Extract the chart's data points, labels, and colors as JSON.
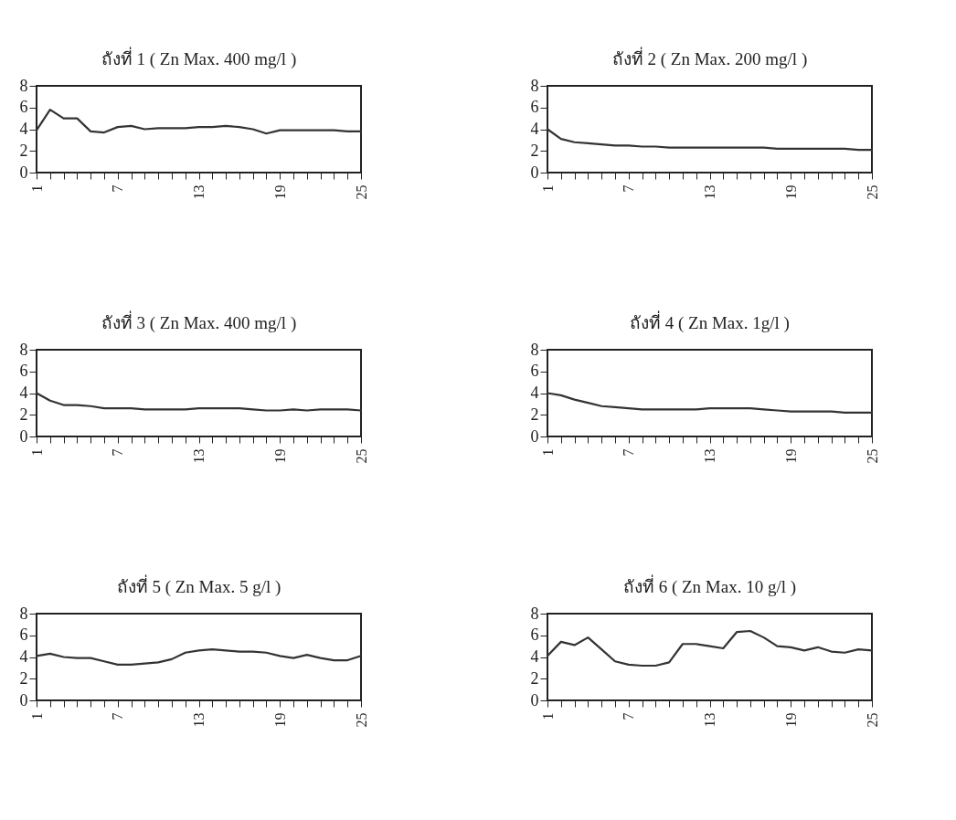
{
  "chart_data": [
    {
      "type": "line",
      "title": "ถังที่  1 ( Zn Max. 400 mg/l )",
      "x": [
        1,
        2,
        3,
        4,
        5,
        6,
        7,
        8,
        9,
        10,
        11,
        12,
        13,
        14,
        15,
        16,
        17,
        18,
        19,
        20,
        21,
        22,
        23,
        24,
        25
      ],
      "series": [
        {
          "color": "#333333",
          "values": [
            3.9,
            5.8,
            5.0,
            5.0,
            3.8,
            3.7,
            4.2,
            4.3,
            4.0,
            4.1,
            4.1,
            4.1,
            4.2,
            4.2,
            4.3,
            4.2,
            4.0,
            3.6,
            3.9,
            3.9,
            3.9,
            3.9,
            3.9,
            3.8,
            3.8
          ]
        }
      ],
      "xlim": [
        1,
        25
      ],
      "ylim": [
        0,
        8
      ],
      "yticks": [
        0,
        2,
        4,
        6,
        8
      ],
      "xticks": [
        1,
        {
          "value": 2,
          "label": null
        },
        {
          "value": 3,
          "label": null
        },
        {
          "value": 4,
          "label": null
        },
        {
          "value": 5,
          "label": null
        },
        {
          "value": 6,
          "label": null
        },
        7,
        {
          "value": 8,
          "label": null
        },
        {
          "value": 9,
          "label": null
        },
        {
          "value": 10,
          "label": null
        },
        {
          "value": 11,
          "label": null
        },
        {
          "value": 12,
          "label": null
        },
        13,
        {
          "value": 14,
          "label": null
        },
        {
          "value": 15,
          "label": null
        },
        {
          "value": 16,
          "label": null
        },
        {
          "value": 17,
          "label": null
        },
        {
          "value": 18,
          "label": null
        },
        19,
        {
          "value": 20,
          "label": null
        },
        {
          "value": 21,
          "label": null
        },
        {
          "value": 22,
          "label": null
        },
        {
          "value": 23,
          "label": null
        },
        {
          "value": 24,
          "label": null
        },
        25
      ],
      "grid": false,
      "marker": "none",
      "line_style": "solid"
    },
    {
      "type": "line",
      "title": "ถังที่  2 ( Zn Max. 200 mg/l )",
      "x": [
        1,
        2,
        3,
        4,
        5,
        6,
        7,
        8,
        9,
        10,
        11,
        12,
        13,
        14,
        15,
        16,
        17,
        18,
        19,
        20,
        21,
        22,
        23,
        24,
        25
      ],
      "series": [
        {
          "color": "#333333",
          "values": [
            4.0,
            3.1,
            2.8,
            2.7,
            2.6,
            2.5,
            2.5,
            2.4,
            2.4,
            2.3,
            2.3,
            2.3,
            2.3,
            2.3,
            2.3,
            2.3,
            2.3,
            2.2,
            2.2,
            2.2,
            2.2,
            2.2,
            2.2,
            2.1,
            2.1
          ]
        }
      ],
      "xlim": [
        1,
        25
      ],
      "ylim": [
        0,
        8
      ],
      "yticks": [
        0,
        2,
        4,
        6,
        8
      ],
      "xticks": [
        1,
        {
          "value": 2,
          "label": null
        },
        {
          "value": 3,
          "label": null
        },
        {
          "value": 4,
          "label": null
        },
        {
          "value": 5,
          "label": null
        },
        {
          "value": 6,
          "label": null
        },
        7,
        {
          "value": 8,
          "label": null
        },
        {
          "value": 9,
          "label": null
        },
        {
          "value": 10,
          "label": null
        },
        {
          "value": 11,
          "label": null
        },
        {
          "value": 12,
          "label": null
        },
        13,
        {
          "value": 14,
          "label": null
        },
        {
          "value": 15,
          "label": null
        },
        {
          "value": 16,
          "label": null
        },
        {
          "value": 17,
          "label": null
        },
        {
          "value": 18,
          "label": null
        },
        19,
        {
          "value": 20,
          "label": null
        },
        {
          "value": 21,
          "label": null
        },
        {
          "value": 22,
          "label": null
        },
        {
          "value": 23,
          "label": null
        },
        {
          "value": 24,
          "label": null
        },
        25
      ],
      "grid": false,
      "marker": "none",
      "line_style": "solid"
    },
    {
      "type": "line",
      "title": "ถังที่  3 ( Zn Max. 400 mg/l )",
      "x": [
        1,
        2,
        3,
        4,
        5,
        6,
        7,
        8,
        9,
        10,
        11,
        12,
        13,
        14,
        15,
        16,
        17,
        18,
        19,
        20,
        21,
        22,
        23,
        24,
        25
      ],
      "series": [
        {
          "color": "#333333",
          "values": [
            4.0,
            3.3,
            2.9,
            2.9,
            2.8,
            2.6,
            2.6,
            2.6,
            2.5,
            2.5,
            2.5,
            2.5,
            2.6,
            2.6,
            2.6,
            2.6,
            2.5,
            2.4,
            2.4,
            2.5,
            2.4,
            2.5,
            2.5,
            2.5,
            2.4
          ]
        }
      ],
      "xlim": [
        1,
        25
      ],
      "ylim": [
        0,
        8
      ],
      "yticks": [
        0,
        2,
        4,
        6,
        8
      ],
      "xticks": [
        1,
        {
          "value": 2,
          "label": null
        },
        {
          "value": 3,
          "label": null
        },
        {
          "value": 4,
          "label": null
        },
        {
          "value": 5,
          "label": null
        },
        {
          "value": 6,
          "label": null
        },
        7,
        {
          "value": 8,
          "label": null
        },
        {
          "value": 9,
          "label": null
        },
        {
          "value": 10,
          "label": null
        },
        {
          "value": 11,
          "label": null
        },
        {
          "value": 12,
          "label": null
        },
        13,
        {
          "value": 14,
          "label": null
        },
        {
          "value": 15,
          "label": null
        },
        {
          "value": 16,
          "label": null
        },
        {
          "value": 17,
          "label": null
        },
        {
          "value": 18,
          "label": null
        },
        19,
        {
          "value": 20,
          "label": null
        },
        {
          "value": 21,
          "label": null
        },
        {
          "value": 22,
          "label": null
        },
        {
          "value": 23,
          "label": null
        },
        {
          "value": 24,
          "label": null
        },
        25
      ],
      "grid": false,
      "marker": "none",
      "line_style": "solid"
    },
    {
      "type": "line",
      "title": "ถังที่  4 ( Zn Max. 1g/l )",
      "x": [
        1,
        2,
        3,
        4,
        5,
        6,
        7,
        8,
        9,
        10,
        11,
        12,
        13,
        14,
        15,
        16,
        17,
        18,
        19,
        20,
        21,
        22,
        23,
        24,
        25
      ],
      "series": [
        {
          "color": "#333333",
          "values": [
            4.0,
            3.8,
            3.4,
            3.1,
            2.8,
            2.7,
            2.6,
            2.5,
            2.5,
            2.5,
            2.5,
            2.5,
            2.6,
            2.6,
            2.6,
            2.6,
            2.5,
            2.4,
            2.3,
            2.3,
            2.3,
            2.3,
            2.2,
            2.2,
            2.2
          ]
        }
      ],
      "xlim": [
        1,
        25
      ],
      "ylim": [
        0,
        8
      ],
      "yticks": [
        0,
        2,
        4,
        6,
        8
      ],
      "xticks": [
        1,
        {
          "value": 2,
          "label": null
        },
        {
          "value": 3,
          "label": null
        },
        {
          "value": 4,
          "label": null
        },
        {
          "value": 5,
          "label": null
        },
        {
          "value": 6,
          "label": null
        },
        7,
        {
          "value": 8,
          "label": null
        },
        {
          "value": 9,
          "label": null
        },
        {
          "value": 10,
          "label": null
        },
        {
          "value": 11,
          "label": null
        },
        {
          "value": 12,
          "label": null
        },
        13,
        {
          "value": 14,
          "label": null
        },
        {
          "value": 15,
          "label": null
        },
        {
          "value": 16,
          "label": null
        },
        {
          "value": 17,
          "label": null
        },
        {
          "value": 18,
          "label": null
        },
        19,
        {
          "value": 20,
          "label": null
        },
        {
          "value": 21,
          "label": null
        },
        {
          "value": 22,
          "label": null
        },
        {
          "value": 23,
          "label": null
        },
        {
          "value": 24,
          "label": null
        },
        25
      ],
      "grid": false,
      "marker": "none",
      "line_style": "solid"
    },
    {
      "type": "line",
      "title": "ถังที่  5 ( Zn Max. 5 g/l )",
      "x": [
        1,
        2,
        3,
        4,
        5,
        6,
        7,
        8,
        9,
        10,
        11,
        12,
        13,
        14,
        15,
        16,
        17,
        18,
        19,
        20,
        21,
        22,
        23,
        24,
        25
      ],
      "series": [
        {
          "color": "#333333",
          "values": [
            4.1,
            4.3,
            4.0,
            3.9,
            3.9,
            3.6,
            3.3,
            3.3,
            3.4,
            3.5,
            3.8,
            4.4,
            4.6,
            4.7,
            4.6,
            4.5,
            4.5,
            4.4,
            4.1,
            3.9,
            4.2,
            3.9,
            3.7,
            3.7,
            4.1
          ]
        }
      ],
      "xlim": [
        1,
        25
      ],
      "ylim": [
        0,
        8
      ],
      "yticks": [
        0,
        2,
        4,
        6,
        8
      ],
      "xticks": [
        1,
        {
          "value": 2,
          "label": null
        },
        {
          "value": 3,
          "label": null
        },
        {
          "value": 4,
          "label": null
        },
        {
          "value": 5,
          "label": null
        },
        {
          "value": 6,
          "label": null
        },
        7,
        {
          "value": 8,
          "label": null
        },
        {
          "value": 9,
          "label": null
        },
        {
          "value": 10,
          "label": null
        },
        {
          "value": 11,
          "label": null
        },
        {
          "value": 12,
          "label": null
        },
        13,
        {
          "value": 14,
          "label": null
        },
        {
          "value": 15,
          "label": null
        },
        {
          "value": 16,
          "label": null
        },
        {
          "value": 17,
          "label": null
        },
        {
          "value": 18,
          "label": null
        },
        19,
        {
          "value": 20,
          "label": null
        },
        {
          "value": 21,
          "label": null
        },
        {
          "value": 22,
          "label": null
        },
        {
          "value": 23,
          "label": null
        },
        {
          "value": 24,
          "label": null
        },
        25
      ],
      "grid": false,
      "marker": "none",
      "line_style": "solid"
    },
    {
      "type": "line",
      "title": "ถังที่  6 ( Zn Max. 10 g/l )",
      "x": [
        1,
        2,
        3,
        4,
        5,
        6,
        7,
        8,
        9,
        10,
        11,
        12,
        13,
        14,
        15,
        16,
        17,
        18,
        19,
        20,
        21,
        22,
        23,
        24,
        25
      ],
      "series": [
        {
          "color": "#333333",
          "values": [
            4.1,
            5.4,
            5.1,
            5.8,
            4.7,
            3.6,
            3.3,
            3.2,
            3.2,
            3.5,
            5.2,
            5.2,
            5.0,
            4.8,
            6.3,
            6.4,
            5.8,
            5.0,
            4.9,
            4.6,
            4.9,
            4.5,
            4.4,
            4.7,
            4.6
          ]
        }
      ],
      "xlim": [
        1,
        25
      ],
      "ylim": [
        0,
        8
      ],
      "yticks": [
        0,
        2,
        4,
        6,
        8
      ],
      "xticks": [
        1,
        {
          "value": 2,
          "label": null
        },
        {
          "value": 3,
          "label": null
        },
        {
          "value": 4,
          "label": null
        },
        {
          "value": 5,
          "label": null
        },
        {
          "value": 6,
          "label": null
        },
        7,
        {
          "value": 8,
          "label": null
        },
        {
          "value": 9,
          "label": null
        },
        {
          "value": 10,
          "label": null
        },
        {
          "value": 11,
          "label": null
        },
        {
          "value": 12,
          "label": null
        },
        13,
        {
          "value": 14,
          "label": null
        },
        {
          "value": 15,
          "label": null
        },
        {
          "value": 16,
          "label": null
        },
        {
          "value": 17,
          "label": null
        },
        {
          "value": 18,
          "label": null
        },
        19,
        {
          "value": 20,
          "label": null
        },
        {
          "value": 21,
          "label": null
        },
        {
          "value": 22,
          "label": null
        },
        {
          "value": 23,
          "label": null
        },
        {
          "value": 24,
          "label": null
        },
        25
      ],
      "grid": false,
      "marker": "none",
      "line_style": "solid"
    }
  ]
}
